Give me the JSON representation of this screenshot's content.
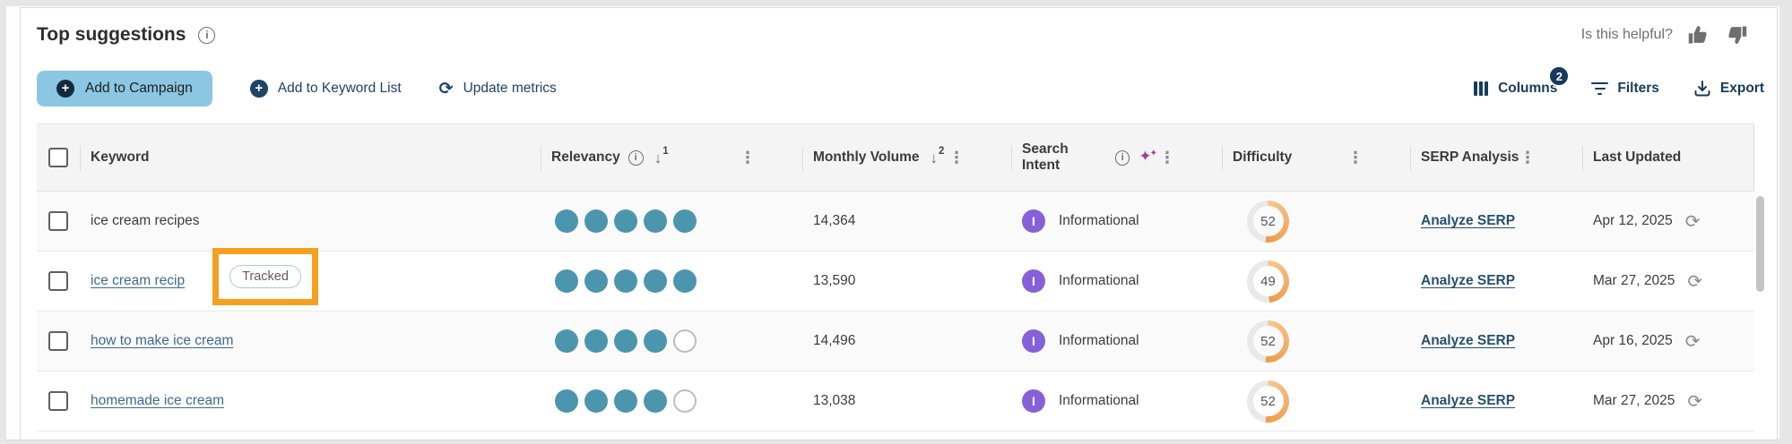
{
  "header": {
    "title": "Top suggestions",
    "helpful_label": "Is this helpful?"
  },
  "toolbar": {
    "add_to_campaign": "Add to Campaign",
    "add_to_keyword_list": "Add to Keyword List",
    "update_metrics": "Update metrics",
    "columns_label": "Columns",
    "columns_badge": "2",
    "filters_label": "Filters",
    "export_label": "Export"
  },
  "icons": {
    "plus": "+",
    "info": "i",
    "refresh": "⟳",
    "kebab": "⋮",
    "sort_desc": "↓",
    "sparkle_large": "✦",
    "sparkle_small": "✦",
    "intent_informational_initial": "I"
  },
  "table": {
    "columns": {
      "keyword": "Keyword",
      "relevancy": "Relevancy",
      "relevancy_sort_rank": "1",
      "monthly_volume": "Monthly Volume",
      "monthly_volume_sort_rank": "2",
      "search_intent": "Search Intent",
      "difficulty": "Difficulty",
      "serp_analysis": "SERP Analysis",
      "last_updated": "Last Updated"
    },
    "rows": [
      {
        "keyword": "ice cream recipes",
        "relevancy": 5,
        "monthly_volume": "14,364",
        "search_intent": "Informational",
        "difficulty": 52,
        "serp_link": "Analyze SERP",
        "last_updated": "Apr 12, 2025"
      },
      {
        "keyword": "ice cream recip",
        "tracked_badge": "Tracked",
        "relevancy": 5,
        "monthly_volume": "13,590",
        "search_intent": "Informational",
        "difficulty": 49,
        "serp_link": "Analyze SERP",
        "last_updated": "Mar 27, 2025"
      },
      {
        "keyword": "how to make ice cream",
        "relevancy": 4,
        "monthly_volume": "14,496",
        "search_intent": "Informational",
        "difficulty": 52,
        "serp_link": "Analyze SERP",
        "last_updated": "Apr 16, 2025"
      },
      {
        "keyword": "homemade ice cream",
        "relevancy": 4,
        "monthly_volume": "13,038",
        "search_intent": "Informational",
        "difficulty": 52,
        "serp_link": "Analyze SERP",
        "last_updated": "Mar 27, 2025"
      }
    ]
  },
  "colors": {
    "primary_button_blue": "#8BC7E2",
    "navy": "#1D4365",
    "relevancy_teal": "#4C96AD",
    "intent_purple": "#8660D8",
    "difficulty_orange": "#EE9B4B",
    "difficulty_orange_light": "#F6C68F",
    "difficulty_track": "#E9E9E9",
    "annotation_orange": "#F5A120",
    "keyword_link_blue": "#3E6991"
  }
}
